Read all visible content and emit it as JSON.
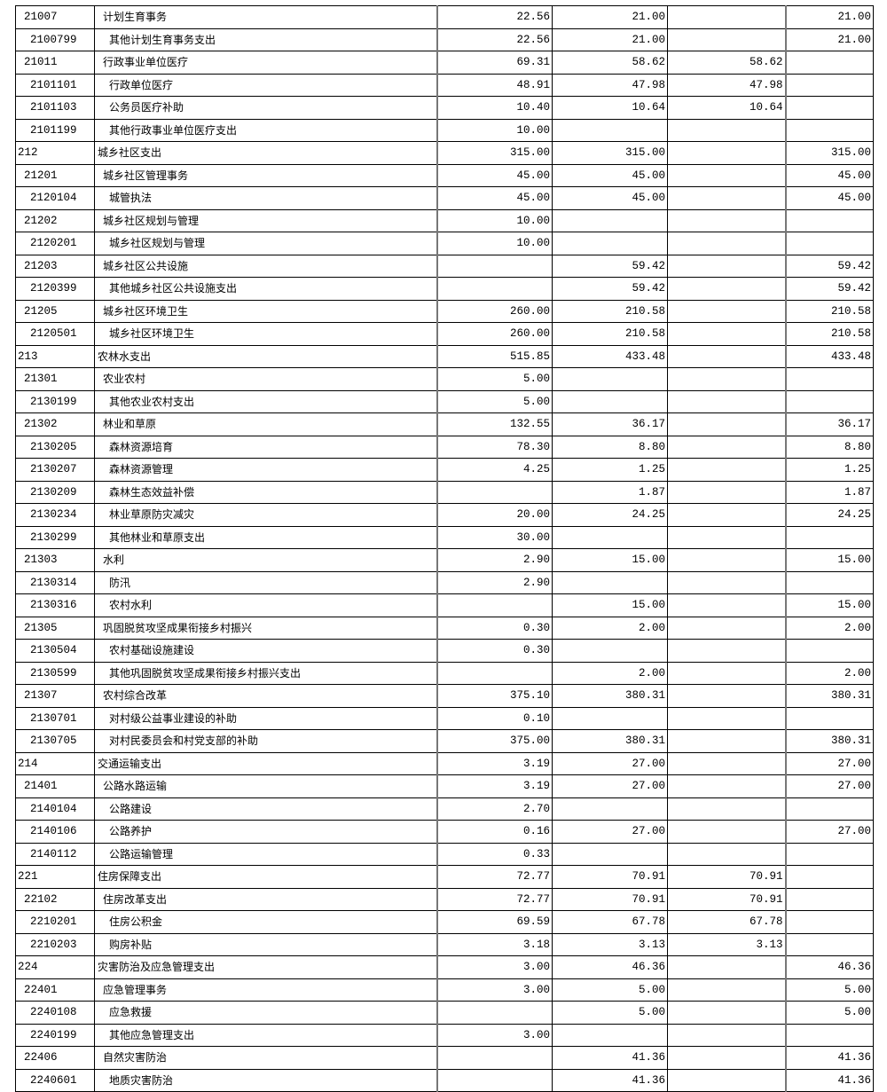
{
  "table": {
    "rows": [
      [
        "21007",
        "计划生育事务",
        "22.56",
        "21.00",
        "",
        "21.00"
      ],
      [
        "2100799",
        "其他计划生育事务支出",
        "22.56",
        "21.00",
        "",
        "21.00"
      ],
      [
        "21011",
        "行政事业单位医疗",
        "69.31",
        "58.62",
        "58.62",
        ""
      ],
      [
        "2101101",
        "行政单位医疗",
        "48.91",
        "47.98",
        "47.98",
        ""
      ],
      [
        "2101103",
        "公务员医疗补助",
        "10.40",
        "10.64",
        "10.64",
        ""
      ],
      [
        "2101199",
        "其他行政事业单位医疗支出",
        "10.00",
        "",
        "",
        ""
      ],
      [
        "212",
        "城乡社区支出",
        "315.00",
        "315.00",
        "",
        "315.00"
      ],
      [
        "21201",
        "城乡社区管理事务",
        "45.00",
        "45.00",
        "",
        "45.00"
      ],
      [
        "2120104",
        "城管执法",
        "45.00",
        "45.00",
        "",
        "45.00"
      ],
      [
        "21202",
        "城乡社区规划与管理",
        "10.00",
        "",
        "",
        ""
      ],
      [
        "2120201",
        "城乡社区规划与管理",
        "10.00",
        "",
        "",
        ""
      ],
      [
        "21203",
        "城乡社区公共设施",
        "",
        "59.42",
        "",
        "59.42"
      ],
      [
        "2120399",
        "其他城乡社区公共设施支出",
        "",
        "59.42",
        "",
        "59.42"
      ],
      [
        "21205",
        "城乡社区环境卫生",
        "260.00",
        "210.58",
        "",
        "210.58"
      ],
      [
        "2120501",
        "城乡社区环境卫生",
        "260.00",
        "210.58",
        "",
        "210.58"
      ],
      [
        "213",
        "农林水支出",
        "515.85",
        "433.48",
        "",
        "433.48"
      ],
      [
        "21301",
        "农业农村",
        "5.00",
        "",
        "",
        ""
      ],
      [
        "2130199",
        "其他农业农村支出",
        "5.00",
        "",
        "",
        ""
      ],
      [
        "21302",
        "林业和草原",
        "132.55",
        "36.17",
        "",
        "36.17"
      ],
      [
        "2130205",
        "森林资源培育",
        "78.30",
        "8.80",
        "",
        "8.80"
      ],
      [
        "2130207",
        "森林资源管理",
        "4.25",
        "1.25",
        "",
        "1.25"
      ],
      [
        "2130209",
        "森林生态效益补偿",
        "",
        "1.87",
        "",
        "1.87"
      ],
      [
        "2130234",
        "林业草原防灾减灾",
        "20.00",
        "24.25",
        "",
        "24.25"
      ],
      [
        "2130299",
        "其他林业和草原支出",
        "30.00",
        "",
        "",
        ""
      ],
      [
        "21303",
        "水利",
        "2.90",
        "15.00",
        "",
        "15.00"
      ],
      [
        "2130314",
        "防汛",
        "2.90",
        "",
        "",
        ""
      ],
      [
        "2130316",
        "农村水利",
        "",
        "15.00",
        "",
        "15.00"
      ],
      [
        "21305",
        "巩固脱贫攻坚成果衔接乡村振兴",
        "0.30",
        "2.00",
        "",
        "2.00"
      ],
      [
        "2130504",
        "农村基础设施建设",
        "0.30",
        "",
        "",
        ""
      ],
      [
        "2130599",
        "其他巩固脱贫攻坚成果衔接乡村振兴支出",
        "",
        "2.00",
        "",
        "2.00"
      ],
      [
        "21307",
        "农村综合改革",
        "375.10",
        "380.31",
        "",
        "380.31"
      ],
      [
        "2130701",
        "对村级公益事业建设的补助",
        "0.10",
        "",
        "",
        ""
      ],
      [
        "2130705",
        "对村民委员会和村党支部的补助",
        "375.00",
        "380.31",
        "",
        "380.31"
      ],
      [
        "214",
        "交通运输支出",
        "3.19",
        "27.00",
        "",
        "27.00"
      ],
      [
        "21401",
        "公路水路运输",
        "3.19",
        "27.00",
        "",
        "27.00"
      ],
      [
        "2140104",
        "公路建设",
        "2.70",
        "",
        "",
        ""
      ],
      [
        "2140106",
        "公路养护",
        "0.16",
        "27.00",
        "",
        "27.00"
      ],
      [
        "2140112",
        "公路运输管理",
        "0.33",
        "",
        "",
        ""
      ],
      [
        "221",
        "住房保障支出",
        "72.77",
        "70.91",
        "70.91",
        ""
      ],
      [
        "22102",
        "住房改革支出",
        "72.77",
        "70.91",
        "70.91",
        ""
      ],
      [
        "2210201",
        "住房公积金",
        "69.59",
        "67.78",
        "67.78",
        ""
      ],
      [
        "2210203",
        "购房补贴",
        "3.18",
        "3.13",
        "3.13",
        ""
      ],
      [
        "224",
        "灾害防治及应急管理支出",
        "3.00",
        "46.36",
        "",
        "46.36"
      ],
      [
        "22401",
        "应急管理事务",
        "3.00",
        "5.00",
        "",
        "5.00"
      ],
      [
        "2240108",
        "应急救援",
        "",
        "5.00",
        "",
        "5.00"
      ],
      [
        "2240199",
        "其他应急管理支出",
        "3.00",
        "",
        "",
        ""
      ],
      [
        "22406",
        "自然灾害防治",
        "",
        "41.36",
        "",
        "41.36"
      ],
      [
        "2240601",
        "地质灾害防治",
        "",
        "41.36",
        "",
        "41.36"
      ]
    ]
  }
}
